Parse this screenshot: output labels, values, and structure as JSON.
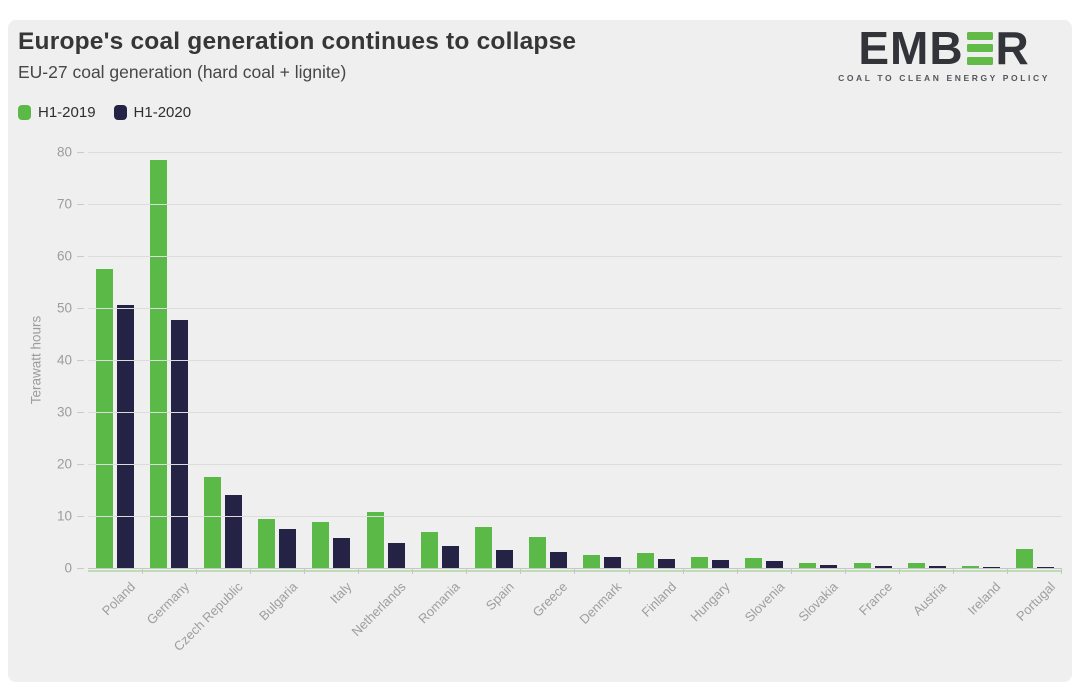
{
  "page": {
    "background": "#ffffff",
    "card_background": "#efeff0"
  },
  "header": {
    "title": "Europe's coal generation continues to collapse",
    "subtitle": "EU-27 coal generation (hard coal + lignite)"
  },
  "logo": {
    "text_before": "EMB",
    "text_after": "R",
    "tagline": "COAL TO CLEAN ENERGY POLICY",
    "green": "#62bb46",
    "dark": "#33333a"
  },
  "colors": {
    "h1_2019": "#5bb947",
    "h1_2020": "#242345",
    "gridline": "#dcdcdc",
    "axis_text": "#9c9c9c"
  },
  "chart_data": {
    "type": "bar",
    "title": "Europe's coal generation continues to collapse",
    "subtitle": "EU-27 coal generation (hard coal + lignite)",
    "xlabel": "",
    "ylabel": "Terawatt hours",
    "ylim": [
      0,
      80
    ],
    "yticks": [
      0,
      10,
      20,
      30,
      40,
      50,
      60,
      70,
      80
    ],
    "grid": true,
    "legend_position": "top-left",
    "categories": [
      "Poland",
      "Germany",
      "Czech Republic",
      "Bulgaria",
      "Italy",
      "Netherlands",
      "Romania",
      "Spain",
      "Greece",
      "Denmark",
      "Finland",
      "Hungary",
      "Slovenia",
      "Slovakia",
      "France",
      "Austria",
      "Ireland",
      "Portugal"
    ],
    "series": [
      {
        "name": "H1-2019",
        "color": "#5bb947",
        "values": [
          57.5,
          78.5,
          17.5,
          9.5,
          8.8,
          10.8,
          7.0,
          7.8,
          6.0,
          2.5,
          2.9,
          2.2,
          1.9,
          1.0,
          0.9,
          0.9,
          0.4,
          3.6
        ]
      },
      {
        "name": "H1-2020",
        "color": "#242345",
        "values": [
          50.5,
          47.7,
          14.1,
          7.5,
          5.7,
          4.9,
          4.3,
          3.4,
          3.1,
          2.1,
          1.8,
          1.6,
          1.4,
          0.6,
          0.4,
          0.3,
          0.2,
          0.2
        ]
      }
    ]
  }
}
